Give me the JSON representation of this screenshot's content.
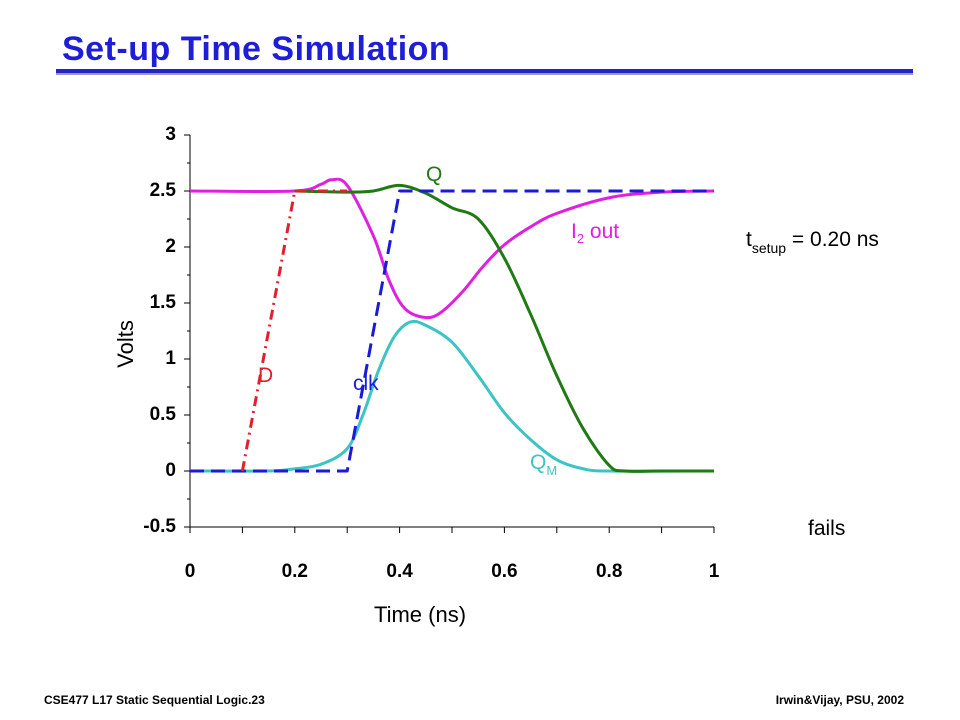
{
  "slide": {
    "title": "Set-up Time Simulation",
    "footer_left": "CSE477  L17 Static Sequential Logic.23",
    "footer_right": "Irwin&Vijay, PSU, 2002"
  },
  "annotations": {
    "tsetup_prefix": "t",
    "tsetup_sub": "setup",
    "tsetup_value": " = 0.20 ns",
    "fails": "fails"
  },
  "colors": {
    "title": "#1e1ed8",
    "D": "#e0202e",
    "clk": "#1a1ad8",
    "Q": "#1f7a14",
    "I2": "#e020e0",
    "QM": "#3cc4c4"
  },
  "chart_data": {
    "type": "line",
    "title": "",
    "xlabel": "Time (ns)",
    "ylabel": "Volts",
    "xlim": [
      0,
      1
    ],
    "ylim": [
      -0.5,
      3
    ],
    "x_ticks": [
      "0",
      "0.2",
      "0.4",
      "0.6",
      "0.8",
      "1"
    ],
    "y_ticks": [
      "-0.5",
      "0",
      "0.5",
      "1",
      "1.5",
      "2",
      "2.5",
      "3"
    ],
    "grid": false,
    "series": [
      {
        "name": "D",
        "style": "dash-dot",
        "color": "#e0202e",
        "points": [
          [
            0.1,
            0
          ],
          [
            0.2,
            2.5
          ],
          [
            0.3,
            2.5
          ]
        ]
      },
      {
        "name": "clk",
        "style": "dashed",
        "color": "#1a1ad8",
        "points": [
          [
            0,
            0
          ],
          [
            0.3,
            0
          ],
          [
            0.4,
            2.5
          ],
          [
            1,
            2.5
          ]
        ]
      },
      {
        "name": "Q",
        "name_parts": [
          "Q"
        ],
        "style": "solid",
        "color": "#1f7a14",
        "points": [
          [
            0.2,
            2.5
          ],
          [
            0.3,
            2.49
          ],
          [
            0.35,
            2.5
          ],
          [
            0.4,
            2.55
          ],
          [
            0.45,
            2.48
          ],
          [
            0.5,
            2.35
          ],
          [
            0.55,
            2.25
          ],
          [
            0.6,
            1.9
          ],
          [
            0.65,
            1.4
          ],
          [
            0.7,
            0.85
          ],
          [
            0.75,
            0.38
          ],
          [
            0.8,
            0.05
          ],
          [
            0.83,
            0
          ],
          [
            0.9,
            0
          ],
          [
            1,
            0
          ]
        ]
      },
      {
        "name": "I2 out",
        "name_parts": [
          "I",
          "2",
          " out"
        ],
        "style": "solid",
        "color": "#e020e0",
        "points": [
          [
            0,
            2.5
          ],
          [
            0.2,
            2.5
          ],
          [
            0.25,
            2.56
          ],
          [
            0.27,
            2.6
          ],
          [
            0.3,
            2.55
          ],
          [
            0.35,
            2.1
          ],
          [
            0.38,
            1.7
          ],
          [
            0.41,
            1.45
          ],
          [
            0.45,
            1.37
          ],
          [
            0.48,
            1.42
          ],
          [
            0.52,
            1.6
          ],
          [
            0.56,
            1.83
          ],
          [
            0.6,
            2.02
          ],
          [
            0.65,
            2.18
          ],
          [
            0.7,
            2.3
          ],
          [
            0.8,
            2.44
          ],
          [
            0.9,
            2.49
          ],
          [
            1,
            2.5
          ]
        ]
      },
      {
        "name": "QM",
        "name_parts": [
          "Q",
          "M"
        ],
        "style": "solid",
        "color": "#3cc4c4",
        "points": [
          [
            0,
            0
          ],
          [
            0.15,
            0
          ],
          [
            0.2,
            0.02
          ],
          [
            0.25,
            0.06
          ],
          [
            0.3,
            0.2
          ],
          [
            0.33,
            0.5
          ],
          [
            0.36,
            0.9
          ],
          [
            0.39,
            1.2
          ],
          [
            0.42,
            1.33
          ],
          [
            0.45,
            1.3
          ],
          [
            0.5,
            1.15
          ],
          [
            0.55,
            0.85
          ],
          [
            0.6,
            0.52
          ],
          [
            0.65,
            0.28
          ],
          [
            0.7,
            0.1
          ],
          [
            0.75,
            0.02
          ],
          [
            0.8,
            0
          ],
          [
            1,
            0
          ]
        ]
      }
    ]
  }
}
